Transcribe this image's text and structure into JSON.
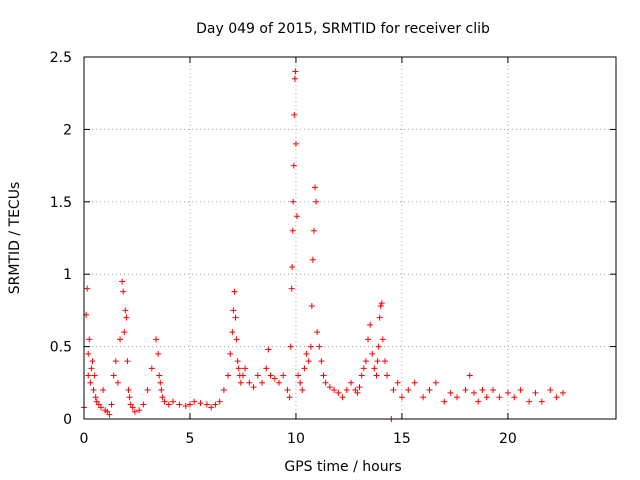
{
  "chart_data": {
    "type": "scatter",
    "title": "Day 049 of 2015, SRMTID for receiver clib",
    "xlabel": "GPS time / hours",
    "ylabel": "SRMTID / TECUs",
    "xlim": [
      0,
      25.1
    ],
    "ylim": [
      0,
      2.5
    ],
    "x_ticks": [
      0,
      5,
      10,
      15,
      20
    ],
    "x_tick_labels": [
      "0",
      "5",
      "10",
      "15",
      "20"
    ],
    "y_ticks": [
      0,
      0.5,
      1,
      1.5,
      2,
      2.5
    ],
    "y_tick_labels": [
      "0",
      "0.5",
      "1",
      "1.5",
      "2",
      "2.5"
    ],
    "grid": true,
    "marker": "+",
    "marker_color": "#ff0000",
    "series": [
      {
        "name": "SRMTID",
        "color": "#ff0000",
        "x": [
          0.0,
          0.1,
          0.15,
          0.2,
          0.2,
          0.25,
          0.3,
          0.35,
          0.4,
          0.45,
          0.5,
          0.55,
          0.6,
          0.7,
          0.8,
          0.9,
          1.0,
          1.1,
          1.2,
          1.3,
          1.4,
          1.5,
          1.6,
          1.7,
          1.8,
          1.85,
          1.9,
          1.95,
          2.0,
          2.05,
          2.1,
          2.15,
          2.2,
          2.3,
          2.4,
          2.6,
          2.8,
          3.0,
          3.2,
          3.4,
          3.5,
          3.55,
          3.6,
          3.65,
          3.7,
          3.8,
          4.0,
          4.2,
          4.5,
          4.8,
          5.0,
          5.2,
          5.5,
          5.8,
          6.0,
          6.2,
          6.4,
          6.6,
          6.8,
          6.9,
          7.0,
          7.05,
          7.1,
          7.15,
          7.2,
          7.25,
          7.3,
          7.35,
          7.4,
          7.5,
          7.6,
          7.8,
          8.0,
          8.2,
          8.4,
          8.6,
          8.7,
          8.8,
          9.0,
          9.2,
          9.4,
          9.6,
          9.7,
          9.75,
          9.8,
          9.82,
          9.85,
          9.87,
          9.9,
          9.92,
          9.95,
          9.97,
          10.0,
          10.05,
          10.1,
          10.2,
          10.3,
          10.4,
          10.5,
          10.6,
          10.7,
          10.75,
          10.8,
          10.85,
          10.9,
          10.95,
          11.0,
          11.1,
          11.2,
          11.3,
          11.4,
          11.6,
          11.8,
          12.0,
          12.2,
          12.4,
          12.6,
          12.8,
          12.9,
          13.0,
          13.1,
          13.2,
          13.3,
          13.4,
          13.5,
          13.6,
          13.7,
          13.8,
          13.85,
          13.9,
          13.95,
          14.0,
          14.05,
          14.1,
          14.2,
          14.3,
          14.5,
          14.6,
          14.8,
          15.0,
          15.3,
          15.6,
          16.0,
          16.3,
          16.6,
          17.0,
          17.3,
          17.6,
          18.0,
          18.2,
          18.4,
          18.6,
          18.8,
          19.0,
          19.3,
          19.6,
          20.0,
          20.3,
          20.6,
          21.0,
          21.3,
          21.6,
          22.0,
          22.3,
          22.6
        ],
        "y": [
          0.08,
          0.72,
          0.9,
          0.45,
          0.3,
          0.55,
          0.25,
          0.35,
          0.4,
          0.2,
          0.3,
          0.15,
          0.12,
          0.1,
          0.08,
          0.2,
          0.06,
          0.05,
          0.03,
          0.1,
          0.3,
          0.4,
          0.25,
          0.55,
          0.95,
          0.88,
          0.6,
          0.75,
          0.7,
          0.4,
          0.2,
          0.15,
          0.1,
          0.08,
          0.05,
          0.06,
          0.1,
          0.2,
          0.35,
          0.55,
          0.45,
          0.3,
          0.25,
          0.2,
          0.15,
          0.12,
          0.1,
          0.12,
          0.1,
          0.09,
          0.1,
          0.12,
          0.11,
          0.1,
          0.08,
          0.1,
          0.12,
          0.2,
          0.3,
          0.45,
          0.6,
          0.75,
          0.88,
          0.7,
          0.55,
          0.4,
          0.35,
          0.3,
          0.25,
          0.3,
          0.35,
          0.25,
          0.22,
          0.3,
          0.25,
          0.35,
          0.48,
          0.3,
          0.28,
          0.25,
          0.3,
          0.2,
          0.15,
          0.5,
          0.9,
          1.05,
          1.3,
          1.5,
          1.75,
          2.1,
          2.35,
          2.4,
          1.9,
          1.4,
          0.3,
          0.25,
          0.2,
          0.35,
          0.45,
          0.4,
          0.5,
          0.78,
          1.1,
          1.3,
          1.6,
          1.5,
          0.6,
          0.5,
          0.4,
          0.3,
          0.25,
          0.22,
          0.2,
          0.18,
          0.15,
          0.2,
          0.25,
          0.2,
          0.18,
          0.22,
          0.3,
          0.35,
          0.4,
          0.55,
          0.65,
          0.45,
          0.35,
          0.3,
          0.4,
          0.5,
          0.7,
          0.78,
          0.8,
          0.55,
          0.4,
          0.3,
          0.0,
          0.2,
          0.25,
          0.15,
          0.2,
          0.25,
          0.15,
          0.2,
          0.25,
          0.12,
          0.18,
          0.15,
          0.2,
          0.3,
          0.18,
          0.12,
          0.2,
          0.15,
          0.2,
          0.15,
          0.18,
          0.15,
          0.2,
          0.12,
          0.18,
          0.12,
          0.2,
          0.15,
          0.18
        ]
      }
    ]
  }
}
